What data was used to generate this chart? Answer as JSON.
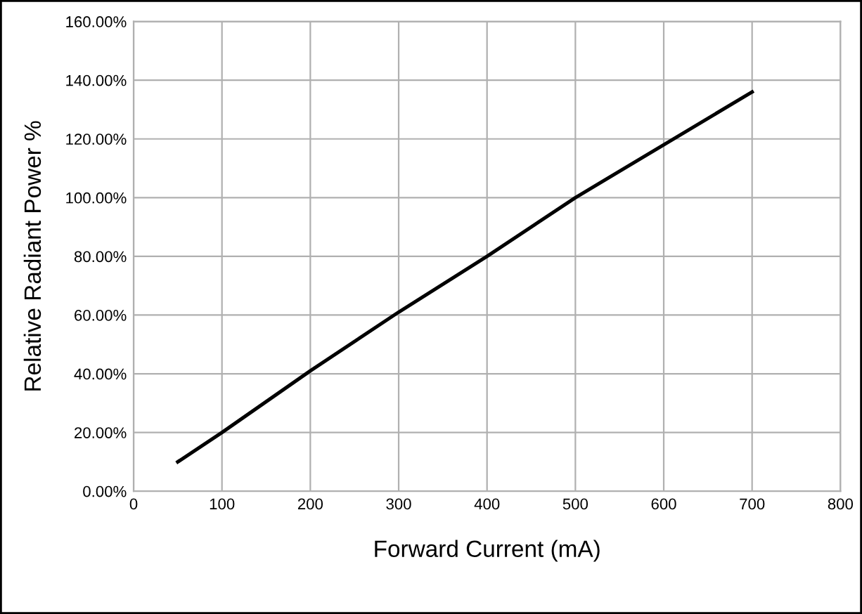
{
  "chart_data": {
    "type": "line",
    "xlabel": "Forward Current (mA)",
    "ylabel": "Relative Radiant Power %",
    "series": [
      {
        "color": "#000000",
        "x": [
          50,
          100,
          200,
          300,
          400,
          500,
          600,
          700
        ],
        "values": [
          10,
          20,
          41,
          61,
          80,
          100,
          118,
          136
        ]
      }
    ],
    "xlim": [
      0,
      800
    ],
    "xticks": [
      0,
      100,
      200,
      300,
      400,
      500,
      600,
      700,
      800
    ],
    "ylim": [
      0,
      160
    ],
    "yticks": [
      {
        "value": 0,
        "label": "0.00%"
      },
      {
        "value": 20,
        "label": "20.00%"
      },
      {
        "value": 40,
        "label": "40.00%"
      },
      {
        "value": 60,
        "label": "60.00%"
      },
      {
        "value": 80,
        "label": "80.00%"
      },
      {
        "value": 100,
        "label": "100.00%"
      },
      {
        "value": 120,
        "label": "120.00%"
      },
      {
        "value": 140,
        "label": "140.00%"
      },
      {
        "value": 160,
        "label": "160.00%"
      }
    ],
    "grid": true,
    "marker": "none",
    "line_style": "solid",
    "legend": false
  }
}
